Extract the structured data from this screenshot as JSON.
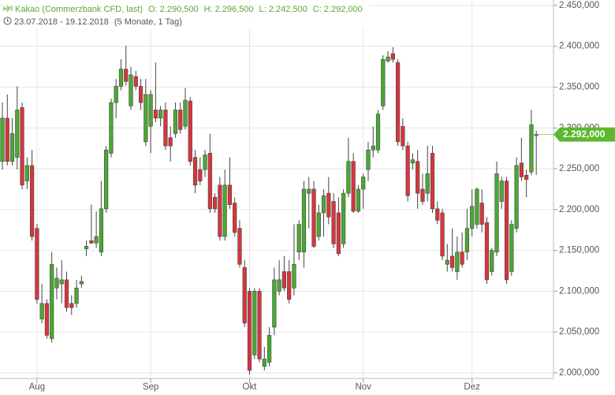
{
  "chart_data": {
    "type": "candlestick",
    "title": "Kakao (Commerzbank CFD, last)",
    "stats": [
      "O: 2.290,500",
      "H: 2.296,500",
      "L: 2.242,500",
      "C: 2.292,000"
    ],
    "date_range": "23.07.2018 - 19.12.2018",
    "period": "(5 Monate, 1 Tag)",
    "last_label": "2.292,000",
    "up_color": "#4aa832",
    "down_color": "#d8353d",
    "grid": true,
    "categories": [
      null,
      null,
      null,
      null,
      null,
      null,
      null,
      "Aug",
      null,
      null,
      null,
      null,
      null,
      null,
      null,
      null,
      null,
      null,
      null,
      null,
      null,
      null,
      null,
      null,
      null,
      null,
      null,
      null,
      null,
      null,
      "Sep",
      null,
      null,
      null,
      null,
      null,
      null,
      null,
      null,
      null,
      null,
      null,
      null,
      null,
      null,
      null,
      null,
      null,
      null,
      null,
      "Okt",
      null,
      null,
      null,
      null,
      null,
      null,
      null,
      null,
      null,
      null,
      null,
      null,
      null,
      null,
      null,
      null,
      null,
      null,
      null,
      null,
      null,
      null,
      "Nov",
      null,
      null,
      null,
      null,
      null,
      null,
      null,
      null,
      null,
      null,
      null,
      null,
      null,
      null,
      null,
      null,
      null,
      null,
      null,
      null,
      null,
      "Dez",
      null,
      null,
      null,
      null,
      null,
      null,
      null,
      null,
      null,
      null,
      null,
      null,
      null
    ],
    "open": [
      2259,
      2312,
      2259,
      2264,
      2325,
      2235,
      2254,
      2177,
      2066,
      2085,
      2042,
      2104,
      2109,
      2114,
      2085,
      2085,
      2109,
      2152,
      2162,
      2159,
      2148,
      2201,
      2269,
      2331,
      2351,
      2372,
      2327,
      2363,
      2351,
      2283,
      2302,
      2322,
      2312,
      2322,
      2288,
      2293,
      2322,
      2302,
      2333,
      2264,
      2249,
      2249,
      2269,
      2215,
      2230,
      2167,
      2230,
      2208,
      2177,
      2129,
      2100,
      2022,
      2100,
      2008,
      2013,
      2056,
      2100,
      2124,
      2124,
      2104,
      2148,
      2148,
      2220,
      2225,
      2167,
      2196,
      2220,
      2210,
      2196,
      2158,
      2220,
      2259,
      2198,
      2225,
      2249,
      2273,
      2273,
      2327,
      2382,
      2391,
      2380,
      2302,
      2278,
      2257,
      2259,
      2225,
      2220,
      2269,
      2201,
      2196,
      2133,
      2143,
      2124,
      2148,
      2148,
      2177,
      2182,
      2208,
      2184,
      2124,
      2148,
      2210,
      2235,
      2124,
      2177,
      2257,
      2242,
      2246,
      2290.5
    ],
    "high": [
      2331,
      2341,
      2312,
      2351,
      2331,
      2264,
      2273,
      2182,
      2109,
      2090,
      2148,
      2129,
      2138,
      2124,
      2095,
      2114,
      2119,
      2162,
      2206,
      2198,
      2235,
      2278,
      2336,
      2360,
      2384,
      2401,
      2375,
      2370,
      2360,
      2360,
      2346,
      2380,
      2327,
      2331,
      2302,
      2331,
      2331,
      2349,
      2338,
      2273,
      2264,
      2273,
      2293,
      2220,
      2240,
      2249,
      2264,
      2215,
      2187,
      2138,
      2104,
      2104,
      2104,
      2032,
      2056,
      2129,
      2138,
      2143,
      2138,
      2182,
      2187,
      2235,
      2240,
      2235,
      2206,
      2225,
      2240,
      2220,
      2215,
      2225,
      2288,
      2269,
      2230,
      2244,
      2283,
      2302,
      2322,
      2389,
      2394,
      2399,
      2384,
      2312,
      2283,
      2269,
      2273,
      2244,
      2278,
      2278,
      2210,
      2201,
      2158,
      2177,
      2167,
      2172,
      2201,
      2225,
      2227,
      2225,
      2191,
      2153,
      2259,
      2240,
      2240,
      2187,
      2264,
      2288,
      2249,
      2322,
      2296.5
    ],
    "low": [
      2249,
      2254,
      2254,
      2249,
      2225,
      2225,
      2162,
      2085,
      2061,
      2042,
      2037,
      2090,
      2085,
      2075,
      2071,
      2080,
      2104,
      2143,
      2158,
      2153,
      2143,
      2196,
      2264,
      2312,
      2346,
      2352,
      2322,
      2346,
      2322,
      2278,
      2269,
      2307,
      2302,
      2273,
      2259,
      2288,
      2293,
      2298,
      2254,
      2220,
      2230,
      2240,
      2196,
      2196,
      2162,
      2162,
      2201,
      2167,
      2129,
      2056,
      1998,
      2017,
      2013,
      2003,
      2008,
      2046,
      2095,
      2100,
      2085,
      2095,
      2138,
      2129,
      2177,
      2153,
      2162,
      2167,
      2182,
      2153,
      2143,
      2153,
      2215,
      2196,
      2196,
      2201,
      2235,
      2264,
      2269,
      2322,
      2380,
      2380,
      2278,
      2273,
      2210,
      2249,
      2201,
      2206,
      2210,
      2196,
      2182,
      2138,
      2124,
      2124,
      2114,
      2129,
      2138,
      2167,
      2177,
      2172,
      2109,
      2119,
      2143,
      2201,
      2109,
      2119,
      2172,
      2235,
      2215,
      2242,
      2242.5
    ],
    "close": [
      2312,
      2259,
      2293,
      2322,
      2230,
      2254,
      2167,
      2090,
      2085,
      2046,
      2133,
      2116,
      2114,
      2080,
      2080,
      2104,
      2112,
      2155,
      2159,
      2167,
      2201,
      2273,
      2331,
      2351,
      2372,
      2357,
      2365,
      2351,
      2331,
      2341,
      2341,
      2312,
      2322,
      2278,
      2278,
      2322,
      2298,
      2334,
      2259,
      2230,
      2235,
      2267,
      2201,
      2201,
      2167,
      2230,
      2206,
      2172,
      2133,
      2061,
      2003,
      2100,
      2017,
      2017,
      2046,
      2114,
      2114,
      2104,
      2090,
      2133,
      2182,
      2225,
      2225,
      2155,
      2196,
      2217,
      2191,
      2158,
      2146,
      2220,
      2259,
      2198,
      2225,
      2240,
      2273,
      2278,
      2317,
      2384,
      2387,
      2384,
      2283,
      2278,
      2217,
      2261,
      2220,
      2210,
      2244,
      2201,
      2187,
      2143,
      2138,
      2129,
      2148,
      2133,
      2177,
      2204,
      2225,
      2182,
      2114,
      2150,
      2244,
      2235,
      2114,
      2182,
      2254,
      2240,
      2237,
      2304,
      2292
    ],
    "ylim": [
      1993.2,
      2456.7
    ],
    "yticks": [
      {
        "value": 2000,
        "label": "2.000,000"
      },
      {
        "value": 2050,
        "label": "2.050,000"
      },
      {
        "value": 2100,
        "label": "2.100,000"
      },
      {
        "value": 2150,
        "label": "2.150,000"
      },
      {
        "value": 2200,
        "label": "2.200,000"
      },
      {
        "value": 2250,
        "label": "2.250,000"
      },
      {
        "value": 2300,
        "label": "2.300,000"
      },
      {
        "value": 2350,
        "label": "2.350,000"
      },
      {
        "value": 2400,
        "label": "2.400,000"
      },
      {
        "value": 2450,
        "label": "2.450,000"
      }
    ]
  }
}
